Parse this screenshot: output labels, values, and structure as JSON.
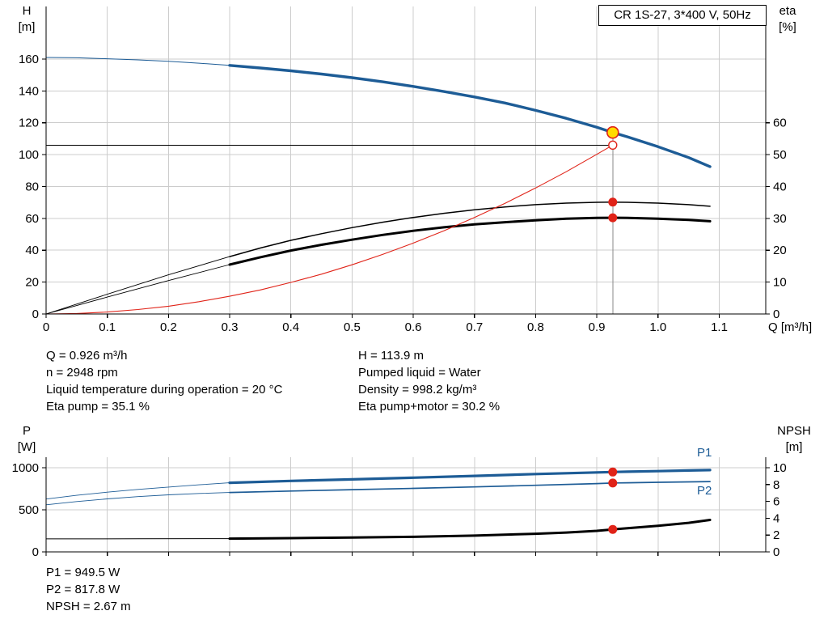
{
  "colors": {
    "blue": "#1d5c96",
    "black": "#000000",
    "red": "#e02318",
    "yellow": "#ffdc00",
    "grid": "#cccccc",
    "guide": "#8a8a8a"
  },
  "chart_data": [
    {
      "name": "qh-eta-chart",
      "type": "line",
      "title": "CR 1S-27, 3*400 V, 50Hz",
      "xlabel": "Q [m³/h]",
      "ylabel_left": [
        "H",
        "[m]"
      ],
      "ylabel_right": [
        "eta",
        "[%]"
      ],
      "xlim": [
        0,
        1.176
      ],
      "ylim_left": [
        0,
        193
      ],
      "ylim_right": [
        0,
        96.5
      ],
      "x_ticks": {
        "values": [
          0,
          0.1,
          0.2,
          0.3,
          0.4,
          0.5,
          0.6,
          0.7,
          0.8,
          0.9,
          1.0,
          1.1
        ],
        "labels": [
          "0",
          "0.1",
          "0.2",
          "0.3",
          "0.4",
          "0.5",
          "0.6",
          "0.7",
          "0.8",
          "0.9",
          "1.0",
          "1.1"
        ],
        "show_labels": true
      },
      "y_ticks_left": {
        "values": [
          0,
          20,
          40,
          60,
          80,
          100,
          120,
          140,
          160
        ],
        "labels": [
          "0",
          "20",
          "40",
          "60",
          "80",
          "100",
          "120",
          "140",
          "160"
        ]
      },
      "y_ticks_right": {
        "values": [
          0,
          10,
          20,
          30,
          40,
          50,
          60
        ],
        "labels": [
          "0",
          "10",
          "20",
          "30",
          "40",
          "50",
          "60"
        ]
      },
      "series": [
        {
          "name": "head-lead",
          "axis": "left",
          "color": "blue",
          "width": 1,
          "points": [
            [
              0,
              161
            ],
            [
              0.05,
              160.8
            ],
            [
              0.1,
              160.2
            ],
            [
              0.15,
              159.5
            ],
            [
              0.2,
              158.6
            ],
            [
              0.25,
              157.4
            ],
            [
              0.3,
              156
            ]
          ]
        },
        {
          "name": "head",
          "axis": "left",
          "color": "blue",
          "width": 3.4,
          "points": [
            [
              0.3,
              156
            ],
            [
              0.35,
              154.4
            ],
            [
              0.4,
              152.6
            ],
            [
              0.45,
              150.6
            ],
            [
              0.5,
              148.3
            ],
            [
              0.55,
              145.7
            ],
            [
              0.6,
              142.8
            ],
            [
              0.65,
              139.6
            ],
            [
              0.7,
              136.2
            ],
            [
              0.75,
              132.4
            ],
            [
              0.8,
              127.8
            ],
            [
              0.85,
              122.8
            ],
            [
              0.9,
              117.2
            ],
            [
              0.926,
              113.9
            ],
            [
              0.95,
              111.2
            ],
            [
              1.0,
              105
            ],
            [
              1.05,
              98.2
            ],
            [
              1.085,
              92.5
            ]
          ]
        },
        {
          "name": "eta-pump-lead",
          "axis": "right",
          "color": "black",
          "width": 0.9,
          "points": [
            [
              0,
              0
            ],
            [
              0.1,
              6.2
            ],
            [
              0.2,
              12.3
            ],
            [
              0.3,
              18
            ]
          ]
        },
        {
          "name": "eta-pump",
          "axis": "right",
          "color": "black",
          "width": 1.5,
          "points": [
            [
              0.3,
              18
            ],
            [
              0.35,
              20.7
            ],
            [
              0.4,
              23.1
            ],
            [
              0.45,
              25.2
            ],
            [
              0.5,
              27.1
            ],
            [
              0.55,
              28.8
            ],
            [
              0.6,
              30.3
            ],
            [
              0.65,
              31.6
            ],
            [
              0.7,
              32.7
            ],
            [
              0.75,
              33.6
            ],
            [
              0.8,
              34.3
            ],
            [
              0.85,
              34.8
            ],
            [
              0.9,
              35.05
            ],
            [
              0.926,
              35.1
            ],
            [
              0.95,
              35.05
            ],
            [
              1.0,
              34.8
            ],
            [
              1.05,
              34.3
            ],
            [
              1.085,
              33.8
            ]
          ]
        },
        {
          "name": "eta-pump-motor-lead",
          "axis": "right",
          "color": "black",
          "width": 0.9,
          "points": [
            [
              0,
              0
            ],
            [
              0.1,
              5.3
            ],
            [
              0.2,
              10.5
            ],
            [
              0.3,
              15.5
            ]
          ]
        },
        {
          "name": "eta-pump-motor",
          "axis": "right",
          "color": "black",
          "width": 3,
          "points": [
            [
              0.3,
              15.5
            ],
            [
              0.35,
              17.8
            ],
            [
              0.4,
              19.9
            ],
            [
              0.45,
              21.7
            ],
            [
              0.5,
              23.3
            ],
            [
              0.55,
              24.8
            ],
            [
              0.6,
              26.1
            ],
            [
              0.65,
              27.2
            ],
            [
              0.7,
              28.1
            ],
            [
              0.75,
              28.8
            ],
            [
              0.8,
              29.4
            ],
            [
              0.85,
              29.9
            ],
            [
              0.9,
              30.15
            ],
            [
              0.926,
              30.2
            ],
            [
              0.95,
              30.15
            ],
            [
              1.0,
              29.9
            ],
            [
              1.05,
              29.5
            ],
            [
              1.085,
              29.1
            ]
          ]
        },
        {
          "name": "system-curve",
          "axis": "left",
          "color": "red",
          "width": 1.1,
          "points": [
            [
              0,
              0
            ],
            [
              0.05,
              0.3
            ],
            [
              0.1,
              1.2
            ],
            [
              0.15,
              2.8
            ],
            [
              0.2,
              4.9
            ],
            [
              0.25,
              7.7
            ],
            [
              0.3,
              11.1
            ],
            [
              0.35,
              15.1
            ],
            [
              0.4,
              19.8
            ],
            [
              0.45,
              25
            ],
            [
              0.5,
              30.9
            ],
            [
              0.55,
              37.4
            ],
            [
              0.6,
              44.5
            ],
            [
              0.65,
              52.2
            ],
            [
              0.7,
              60.6
            ],
            [
              0.75,
              69.5
            ],
            [
              0.8,
              79.1
            ],
            [
              0.85,
              89.3
            ],
            [
              0.9,
              100.2
            ],
            [
              0.926,
              106
            ]
          ]
        }
      ],
      "guides": {
        "vline_x": 0.926,
        "vline_top": 113.9,
        "hline_y": 106,
        "hline_right": 0.926
      },
      "markers": [
        {
          "kind": "duty",
          "x": 0.926,
          "value": 113.9,
          "axis": "left"
        },
        {
          "kind": "open",
          "x": 0.926,
          "value": 106,
          "axis": "left"
        },
        {
          "kind": "dot",
          "x": 0.926,
          "value": 35.1,
          "axis": "right"
        },
        {
          "kind": "dot",
          "x": 0.926,
          "value": 30.2,
          "axis": "right"
        }
      ]
    },
    {
      "name": "power-npsh-chart",
      "type": "line",
      "xlabel": "",
      "ylabel_left": [
        "P",
        "[W]"
      ],
      "ylabel_right": [
        "NPSH",
        "[m]"
      ],
      "series_labels": {
        "p1": "P1",
        "p2": "P2"
      },
      "xlim": [
        0,
        1.176
      ],
      "ylim_left": [
        0,
        1125
      ],
      "ylim_right": [
        0,
        11.25
      ],
      "x_ticks": {
        "values": [
          0,
          0.1,
          0.2,
          0.3,
          0.4,
          0.5,
          0.6,
          0.7,
          0.8,
          0.9,
          1.0,
          1.1
        ],
        "labels": [],
        "show_labels": false
      },
      "y_ticks_left": {
        "values": [
          0,
          500,
          1000
        ],
        "labels": [
          "0",
          "500",
          "1000"
        ]
      },
      "y_ticks_right": {
        "values": [
          0,
          2,
          4,
          6,
          8,
          10
        ],
        "labels": [
          "0",
          "2",
          "4",
          "6",
          "8",
          "10"
        ]
      },
      "series": [
        {
          "name": "p1-lead",
          "axis": "left",
          "color": "blue",
          "width": 0.9,
          "points": [
            [
              0,
              628
            ],
            [
              0.05,
              672
            ],
            [
              0.1,
              710
            ],
            [
              0.15,
              742
            ],
            [
              0.2,
              770
            ],
            [
              0.25,
              797
            ],
            [
              0.3,
              821
            ]
          ]
        },
        {
          "name": "p1",
          "axis": "left",
          "color": "blue",
          "width": 3.2,
          "points": [
            [
              0.3,
              821
            ],
            [
              0.4,
              843
            ],
            [
              0.5,
              862
            ],
            [
              0.6,
              882
            ],
            [
              0.7,
              903
            ],
            [
              0.8,
              925
            ],
            [
              0.9,
              944
            ],
            [
              0.926,
              949.5
            ],
            [
              0.95,
              953
            ],
            [
              1.0,
              960
            ],
            [
              1.05,
              967
            ],
            [
              1.085,
              972
            ]
          ]
        },
        {
          "name": "p2-lead",
          "axis": "left",
          "color": "blue",
          "width": 0.9,
          "points": [
            [
              0,
              560
            ],
            [
              0.05,
              598
            ],
            [
              0.1,
              630
            ],
            [
              0.15,
              657
            ],
            [
              0.2,
              678
            ],
            [
              0.25,
              694
            ],
            [
              0.3,
              706
            ]
          ]
        },
        {
          "name": "p2",
          "axis": "left",
          "color": "blue",
          "width": 1.7,
          "points": [
            [
              0.3,
              706
            ],
            [
              0.4,
              723
            ],
            [
              0.5,
              739
            ],
            [
              0.6,
              755
            ],
            [
              0.7,
              772
            ],
            [
              0.8,
              791
            ],
            [
              0.9,
              812
            ],
            [
              0.926,
              817.8
            ],
            [
              0.95,
              821
            ],
            [
              1.0,
              827
            ],
            [
              1.05,
              832
            ],
            [
              1.085,
              836
            ]
          ]
        },
        {
          "name": "npsh-lead",
          "axis": "right",
          "color": "black",
          "width": 1,
          "points": [
            [
              0,
              1.55
            ],
            [
              0.15,
              1.56
            ],
            [
              0.3,
              1.58
            ]
          ]
        },
        {
          "name": "npsh",
          "axis": "right",
          "color": "black",
          "width": 3,
          "points": [
            [
              0.3,
              1.58
            ],
            [
              0.4,
              1.63
            ],
            [
              0.5,
              1.7
            ],
            [
              0.6,
              1.79
            ],
            [
              0.7,
              1.93
            ],
            [
              0.8,
              2.15
            ],
            [
              0.85,
              2.3
            ],
            [
              0.9,
              2.5
            ],
            [
              0.926,
              2.67
            ],
            [
              0.95,
              2.82
            ],
            [
              1.0,
              3.1
            ],
            [
              1.05,
              3.45
            ],
            [
              1.085,
              3.8
            ]
          ]
        }
      ],
      "markers": [
        {
          "kind": "dot",
          "x": 0.926,
          "value": 949.5,
          "axis": "left"
        },
        {
          "kind": "dot",
          "x": 0.926,
          "value": 817.8,
          "axis": "left"
        },
        {
          "kind": "dot",
          "x": 0.926,
          "value": 2.67,
          "axis": "right"
        }
      ]
    }
  ],
  "info_panel": {
    "left": [
      "Q = 0.926 m³/h",
      "n = 2948 rpm",
      "Liquid temperature during operation = 20 °C",
      "Eta pump = 35.1 %"
    ],
    "right": [
      "H = 113.9 m",
      "Pumped liquid = Water",
      "Density = 998.2 kg/m³",
      "Eta pump+motor = 30.2 %"
    ]
  },
  "results_panel": [
    "P1 = 949.5 W",
    "P2 = 817.8 W",
    "NPSH = 2.67 m"
  ]
}
